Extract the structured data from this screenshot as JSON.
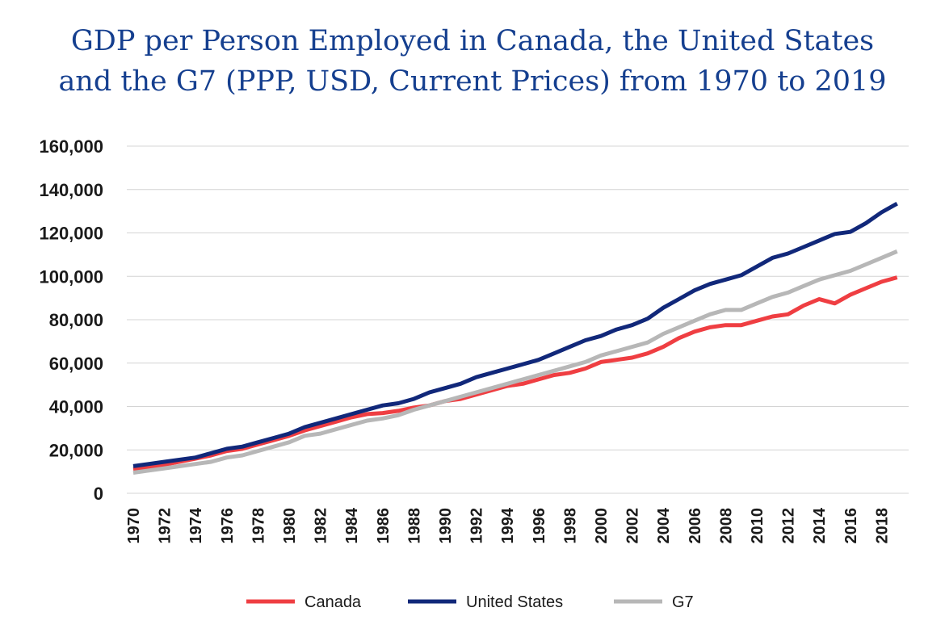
{
  "chart_data": {
    "type": "line",
    "title_lines": [
      "GDP per Person Employed in Canada, the United States",
      "and the G7 (PPP, USD, Current Prices) from 1970 to 2019"
    ],
    "xlabel": "",
    "ylabel": "",
    "ylim": [
      0,
      160000
    ],
    "y_ticks": [
      0,
      20000,
      40000,
      60000,
      80000,
      100000,
      120000,
      140000,
      160000
    ],
    "y_tick_labels": [
      "0",
      "20,000",
      "40,000",
      "60,000",
      "80,000",
      "100,000",
      "120,000",
      "140,000",
      "160,000"
    ],
    "x": [
      1970,
      1971,
      1972,
      1973,
      1974,
      1975,
      1976,
      1977,
      1978,
      1979,
      1980,
      1981,
      1982,
      1983,
      1984,
      1985,
      1986,
      1987,
      1988,
      1989,
      1990,
      1991,
      1992,
      1993,
      1994,
      1995,
      1996,
      1997,
      1998,
      1999,
      2000,
      2001,
      2002,
      2003,
      2004,
      2005,
      2006,
      2007,
      2008,
      2009,
      2010,
      2011,
      2012,
      2013,
      2014,
      2015,
      2016,
      2017,
      2018,
      2019
    ],
    "x_tick_labels": [
      "1970",
      "1972",
      "1974",
      "1976",
      "1978",
      "1980",
      "1982",
      "1984",
      "1986",
      "1988",
      "1990",
      "1992",
      "1994",
      "1996",
      "1998",
      "2000",
      "2002",
      "2004",
      "2006",
      "2008",
      "2010",
      "2012",
      "2014",
      "2016",
      "2018"
    ],
    "grid": true,
    "legend_position": "bottom",
    "series": [
      {
        "name": "Canada",
        "color": "#ef3e42",
        "values": [
          11000,
          12000,
          13200,
          14600,
          16000,
          17500,
          19500,
          20500,
          22500,
          24500,
          26500,
          29000,
          31000,
          33000,
          35000,
          36500,
          37000,
          38000,
          39500,
          40500,
          42500,
          43500,
          45500,
          47500,
          49500,
          50500,
          52500,
          54500,
          55500,
          57500,
          60500,
          61500,
          62500,
          64500,
          67500,
          71500,
          74500,
          76500,
          77500,
          77500,
          79500,
          81500,
          82500,
          86500,
          89500,
          87500,
          91500,
          94500,
          97500,
          99500
        ]
      },
      {
        "name": "United States",
        "color": "#11287a",
        "values": [
          12500,
          13500,
          14500,
          15500,
          16500,
          18500,
          20500,
          21500,
          23500,
          25500,
          27500,
          30500,
          32500,
          34500,
          36500,
          38500,
          40500,
          41500,
          43500,
          46500,
          48500,
          50500,
          53500,
          55500,
          57500,
          59500,
          61500,
          64500,
          67500,
          70500,
          72500,
          75500,
          77500,
          80500,
          85500,
          89500,
          93500,
          96500,
          98500,
          100500,
          104500,
          108500,
          110500,
          113500,
          116500,
          119500,
          120500,
          124500,
          129500,
          133500
        ]
      },
      {
        "name": "G7",
        "color": "#b7b7b7",
        "values": [
          9500,
          10500,
          11500,
          12500,
          13500,
          14500,
          16500,
          17500,
          19500,
          21500,
          23500,
          26500,
          27500,
          29500,
          31500,
          33500,
          34500,
          36000,
          38500,
          40500,
          42500,
          44500,
          46500,
          48500,
          50500,
          52500,
          54500,
          56500,
          58500,
          60500,
          63500,
          65500,
          67500,
          69500,
          73500,
          76500,
          79500,
          82500,
          84500,
          84500,
          87500,
          90500,
          92500,
          95500,
          98500,
          100500,
          102500,
          105500,
          108500,
          111500
        ]
      }
    ]
  }
}
